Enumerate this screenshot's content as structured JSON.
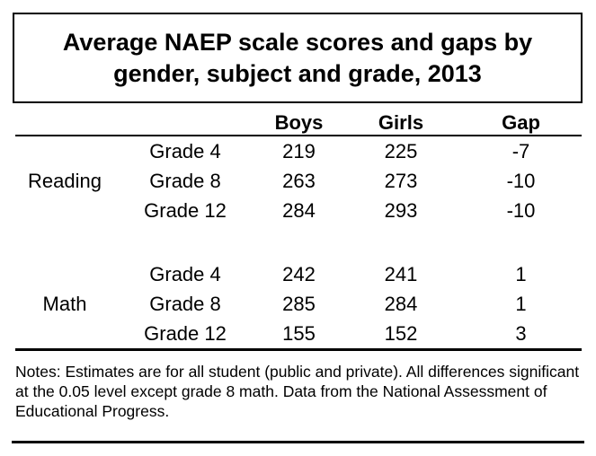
{
  "title": {
    "lines": [
      "Average NAEP scale scores and gaps by",
      "gender, subject and grade, 2013"
    ],
    "full": "Average NAEP scale scores and gaps by gender, subject and grade, 2013"
  },
  "table": {
    "headers": {
      "boys": "Boys",
      "girls": "Girls",
      "gap": "Gap"
    },
    "sections": [
      {
        "subject": "Reading",
        "rows": [
          {
            "grade": "Grade 4",
            "boys": "219",
            "girls": "225",
            "gap": "-7"
          },
          {
            "grade": "Grade 8",
            "boys": "263",
            "girls": "273",
            "gap": "-10"
          },
          {
            "grade": "Grade 12",
            "boys": "284",
            "girls": "293",
            "gap": "-10"
          }
        ]
      },
      {
        "subject": "Math",
        "rows": [
          {
            "grade": "Grade 4",
            "boys": "242",
            "girls": "241",
            "gap": "1"
          },
          {
            "grade": "Grade 8",
            "boys": "285",
            "girls": "284",
            "gap": "1"
          },
          {
            "grade": "Grade 12",
            "boys": "155",
            "girls": "152",
            "gap": "3"
          }
        ]
      }
    ]
  },
  "notes": "Notes: Estimates are for all student (public and private). All differences significant at the 0.05 level except grade 8 math. Data from the National Assessment of Educational Progress.",
  "colors": {
    "text": "#000000",
    "background": "#ffffff",
    "rule": "#000000"
  },
  "chart_data": {
    "type": "table",
    "title": "Average NAEP scale scores and gaps by gender, subject and grade, 2013",
    "columns": [
      "Subject",
      "Grade",
      "Boys",
      "Girls",
      "Gap"
    ],
    "rows": [
      [
        "Reading",
        "Grade 4",
        219,
        225,
        -7
      ],
      [
        "Reading",
        "Grade 8",
        263,
        273,
        -10
      ],
      [
        "Reading",
        "Grade 12",
        284,
        293,
        -10
      ],
      [
        "Math",
        "Grade 4",
        242,
        241,
        1
      ],
      [
        "Math",
        "Grade 8",
        285,
        284,
        1
      ],
      [
        "Math",
        "Grade 12",
        155,
        152,
        3
      ]
    ],
    "notes": "Notes: Estimates are for all student (public and private). All differences significant at the 0.05 level except grade 8 math. Data from the National Assessment of Educational Progress."
  }
}
